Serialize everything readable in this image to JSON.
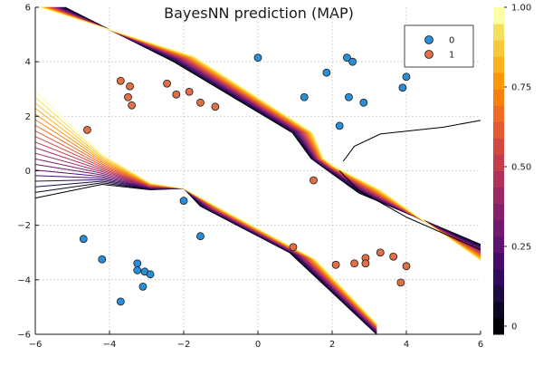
{
  "chart_data": {
    "type": "scatter",
    "title": "BayesNN prediction (MAP)",
    "xlabel": "",
    "ylabel": "",
    "xlim": [
      -6,
      6
    ],
    "ylim": [
      -6,
      6
    ],
    "x_ticks": [
      -6,
      -4,
      -2,
      0,
      2,
      4,
      6
    ],
    "y_ticks": [
      -6,
      -4,
      -2,
      0,
      2,
      4,
      6
    ],
    "grid": true,
    "legend_position": "top-right",
    "series": [
      {
        "name": "0",
        "color": "#2a8fd8",
        "points": [
          [
            0.0,
            4.15
          ],
          [
            2.4,
            4.15
          ],
          [
            2.55,
            4.0
          ],
          [
            1.85,
            3.6
          ],
          [
            4.0,
            3.45
          ],
          [
            3.9,
            3.05
          ],
          [
            1.25,
            2.7
          ],
          [
            2.45,
            2.7
          ],
          [
            2.85,
            2.5
          ],
          [
            2.2,
            1.65
          ],
          [
            -2.0,
            -1.1
          ],
          [
            -1.55,
            -2.4
          ],
          [
            -4.7,
            -2.5
          ],
          [
            -4.2,
            -3.25
          ],
          [
            -3.25,
            -3.4
          ],
          [
            -3.25,
            -3.65
          ],
          [
            -3.05,
            -3.7
          ],
          [
            -2.9,
            -3.8
          ],
          [
            -3.1,
            -4.25
          ],
          [
            -3.7,
            -4.8
          ]
        ]
      },
      {
        "name": "1",
        "color": "#e26f46",
        "points": [
          [
            -3.7,
            3.3
          ],
          [
            -3.45,
            3.1
          ],
          [
            -3.5,
            2.7
          ],
          [
            -3.4,
            2.4
          ],
          [
            -2.45,
            3.2
          ],
          [
            -2.2,
            2.8
          ],
          [
            -1.85,
            2.9
          ],
          [
            -1.55,
            2.5
          ],
          [
            -1.15,
            2.35
          ],
          [
            -4.6,
            1.5
          ],
          [
            1.5,
            -0.35
          ],
          [
            0.95,
            -2.8
          ],
          [
            2.1,
            -3.45
          ],
          [
            2.6,
            -3.4
          ],
          [
            2.9,
            -3.2
          ],
          [
            2.9,
            -3.4
          ],
          [
            3.3,
            -3.0
          ],
          [
            3.65,
            -3.15
          ],
          [
            4.0,
            -3.5
          ],
          [
            3.85,
            -4.1
          ]
        ]
      }
    ],
    "colorbar": {
      "ticks": [
        "0",
        "0.25",
        "0.50",
        "0.75",
        "1.00"
      ],
      "tick_values": [
        0,
        0.25,
        0.5,
        0.75,
        1.0
      ],
      "levels": 20,
      "colors": [
        "#000004",
        "#0b0724",
        "#1d0c3f",
        "#320a5e",
        "#470b6a",
        "#5c126e",
        "#71196e",
        "#86206a",
        "#9b2964",
        "#b0325a",
        "#c33d4d",
        "#d44842",
        "#e35932",
        "#ee6c22",
        "#f58010",
        "#fa9807",
        "#fbb01d",
        "#f8c83c",
        "#f3e05f",
        "#fcffa4"
      ]
    }
  }
}
